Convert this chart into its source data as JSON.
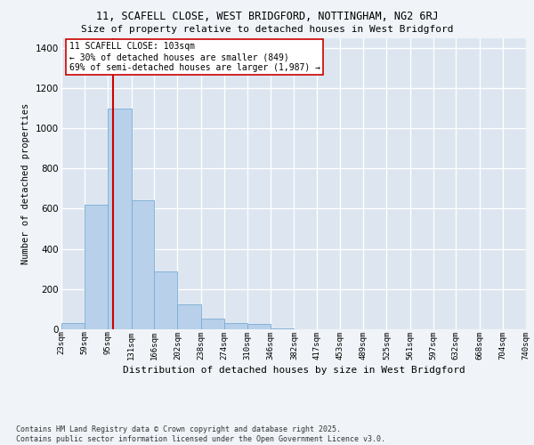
{
  "title1": "11, SCAFELL CLOSE, WEST BRIDGFORD, NOTTINGHAM, NG2 6RJ",
  "title2": "Size of property relative to detached houses in West Bridgford",
  "xlabel": "Distribution of detached houses by size in West Bridgford",
  "ylabel": "Number of detached properties",
  "footer1": "Contains HM Land Registry data © Crown copyright and database right 2025.",
  "footer2": "Contains public sector information licensed under the Open Government Licence v3.0.",
  "bins": [
    23,
    59,
    95,
    131,
    166,
    202,
    238,
    274,
    310,
    346,
    382,
    417,
    453,
    489,
    525,
    561,
    597,
    632,
    668,
    704,
    740
  ],
  "bar_heights": [
    30,
    620,
    1100,
    640,
    290,
    125,
    55,
    30,
    25,
    5,
    0,
    0,
    0,
    0,
    0,
    0,
    0,
    0,
    0,
    0
  ],
  "bar_color": "#b8d0ea",
  "bar_edgecolor": "#7aadd4",
  "background_color": "#dde6f0",
  "grid_color": "#ffffff",
  "property_size": 103,
  "vline_color": "#cc0000",
  "annotation_text": "11 SCAFELL CLOSE: 103sqm\n← 30% of detached houses are smaller (849)\n69% of semi-detached houses are larger (1,987) →",
  "annotation_box_color": "#ffffff",
  "annotation_box_edgecolor": "#cc0000",
  "ylim": [
    0,
    1450
  ],
  "yticks": [
    0,
    200,
    400,
    600,
    800,
    1000,
    1200,
    1400
  ],
  "fig_bg": "#f0f4f8"
}
